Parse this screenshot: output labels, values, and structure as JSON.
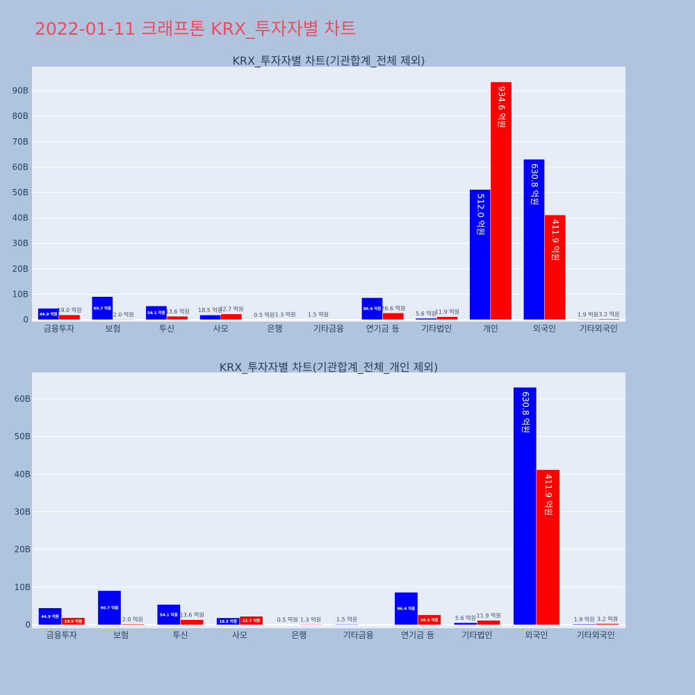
{
  "page": {
    "title": "2022-01-11 크래프톤 KRX_투자자별 차트"
  },
  "colors": {
    "background": "#b0c4de",
    "plot_background": "#e5ecf6",
    "title": "#ef4a5e",
    "series_a": "#0000ff",
    "series_b": "#ff0000"
  },
  "chart_data": [
    {
      "type": "bar",
      "title": "KRX_투자자별 차트(기관합계_전체 제외)",
      "categories": [
        "금융투자",
        "보험",
        "투신",
        "사모",
        "은행",
        "기타금융",
        "연기금 등",
        "기타법인",
        "개인",
        "외국인",
        "기타외국인"
      ],
      "series": [
        {
          "color": "#0000ff",
          "values": [
            4.49,
            9.07,
            5.41,
            1.85,
            0.05,
            0.15,
            8.64,
            0.56,
            51.2,
            63.08,
            0.19
          ]
        },
        {
          "color": "#ff0000",
          "values": [
            1.9,
            0.2,
            1.36,
            2.27,
            0.13,
            0.0,
            2.66,
            1.19,
            93.46,
            41.19,
            0.32
          ]
        }
      ],
      "labels": [
        [
          "44.9 억원",
          "90.7 억원",
          "54.1 억원",
          "18.5 억원",
          "0.5 억원",
          "1.5 억원",
          "86.4 억원",
          "5.6 억원",
          "512.0 억원",
          "630.8 억원",
          "1.9 억원"
        ],
        [
          "19.0 억원",
          "2.0 억원",
          "13.6 억원",
          "22.7 억원",
          "1.3 억원",
          "",
          "26.6 억원",
          "11.9 억원",
          "934.6 억원",
          "411.9 억원",
          "3.2 억원"
        ]
      ],
      "yticks": [
        "0",
        "10B",
        "20B",
        "30B",
        "40B",
        "50B",
        "60B",
        "70B",
        "80B",
        "90B"
      ],
      "ylim": [
        0,
        100
      ],
      "grid": true
    },
    {
      "type": "bar",
      "title": "KRX_투자자별 차트(기관합계_전체_개인 제외)",
      "categories": [
        "금융투자",
        "보험",
        "투신",
        "사모",
        "은행",
        "기타금융",
        "연기금 등",
        "기타법인",
        "외국인",
        "기타외국인"
      ],
      "series": [
        {
          "color": "#0000ff",
          "values": [
            4.49,
            9.07,
            5.41,
            1.85,
            0.05,
            0.15,
            8.64,
            0.56,
            63.08,
            0.19
          ]
        },
        {
          "color": "#ff0000",
          "values": [
            1.9,
            0.2,
            1.36,
            2.27,
            0.13,
            0.0,
            2.66,
            1.19,
            41.19,
            0.32
          ]
        }
      ],
      "labels": [
        [
          "44.9 억원",
          "90.7 억원",
          "54.1 억원",
          "18.5 억원",
          "0.5 억원",
          "1.5 억원",
          "86.4 억원",
          "5.6 억원",
          "630.8 억원",
          "1.9 억원"
        ],
        [
          "19.0 억원",
          "2.0 억원",
          "13.6 억원",
          "22.7 억원",
          "1.3 억원",
          "",
          "26.6 억원",
          "11.9 억원",
          "411.9 억원",
          "3.2 억원"
        ]
      ],
      "yticks": [
        "0",
        "10B",
        "20B",
        "30B",
        "40B",
        "50B",
        "60B"
      ],
      "ylim": [
        0,
        66.5
      ],
      "grid": true
    }
  ]
}
